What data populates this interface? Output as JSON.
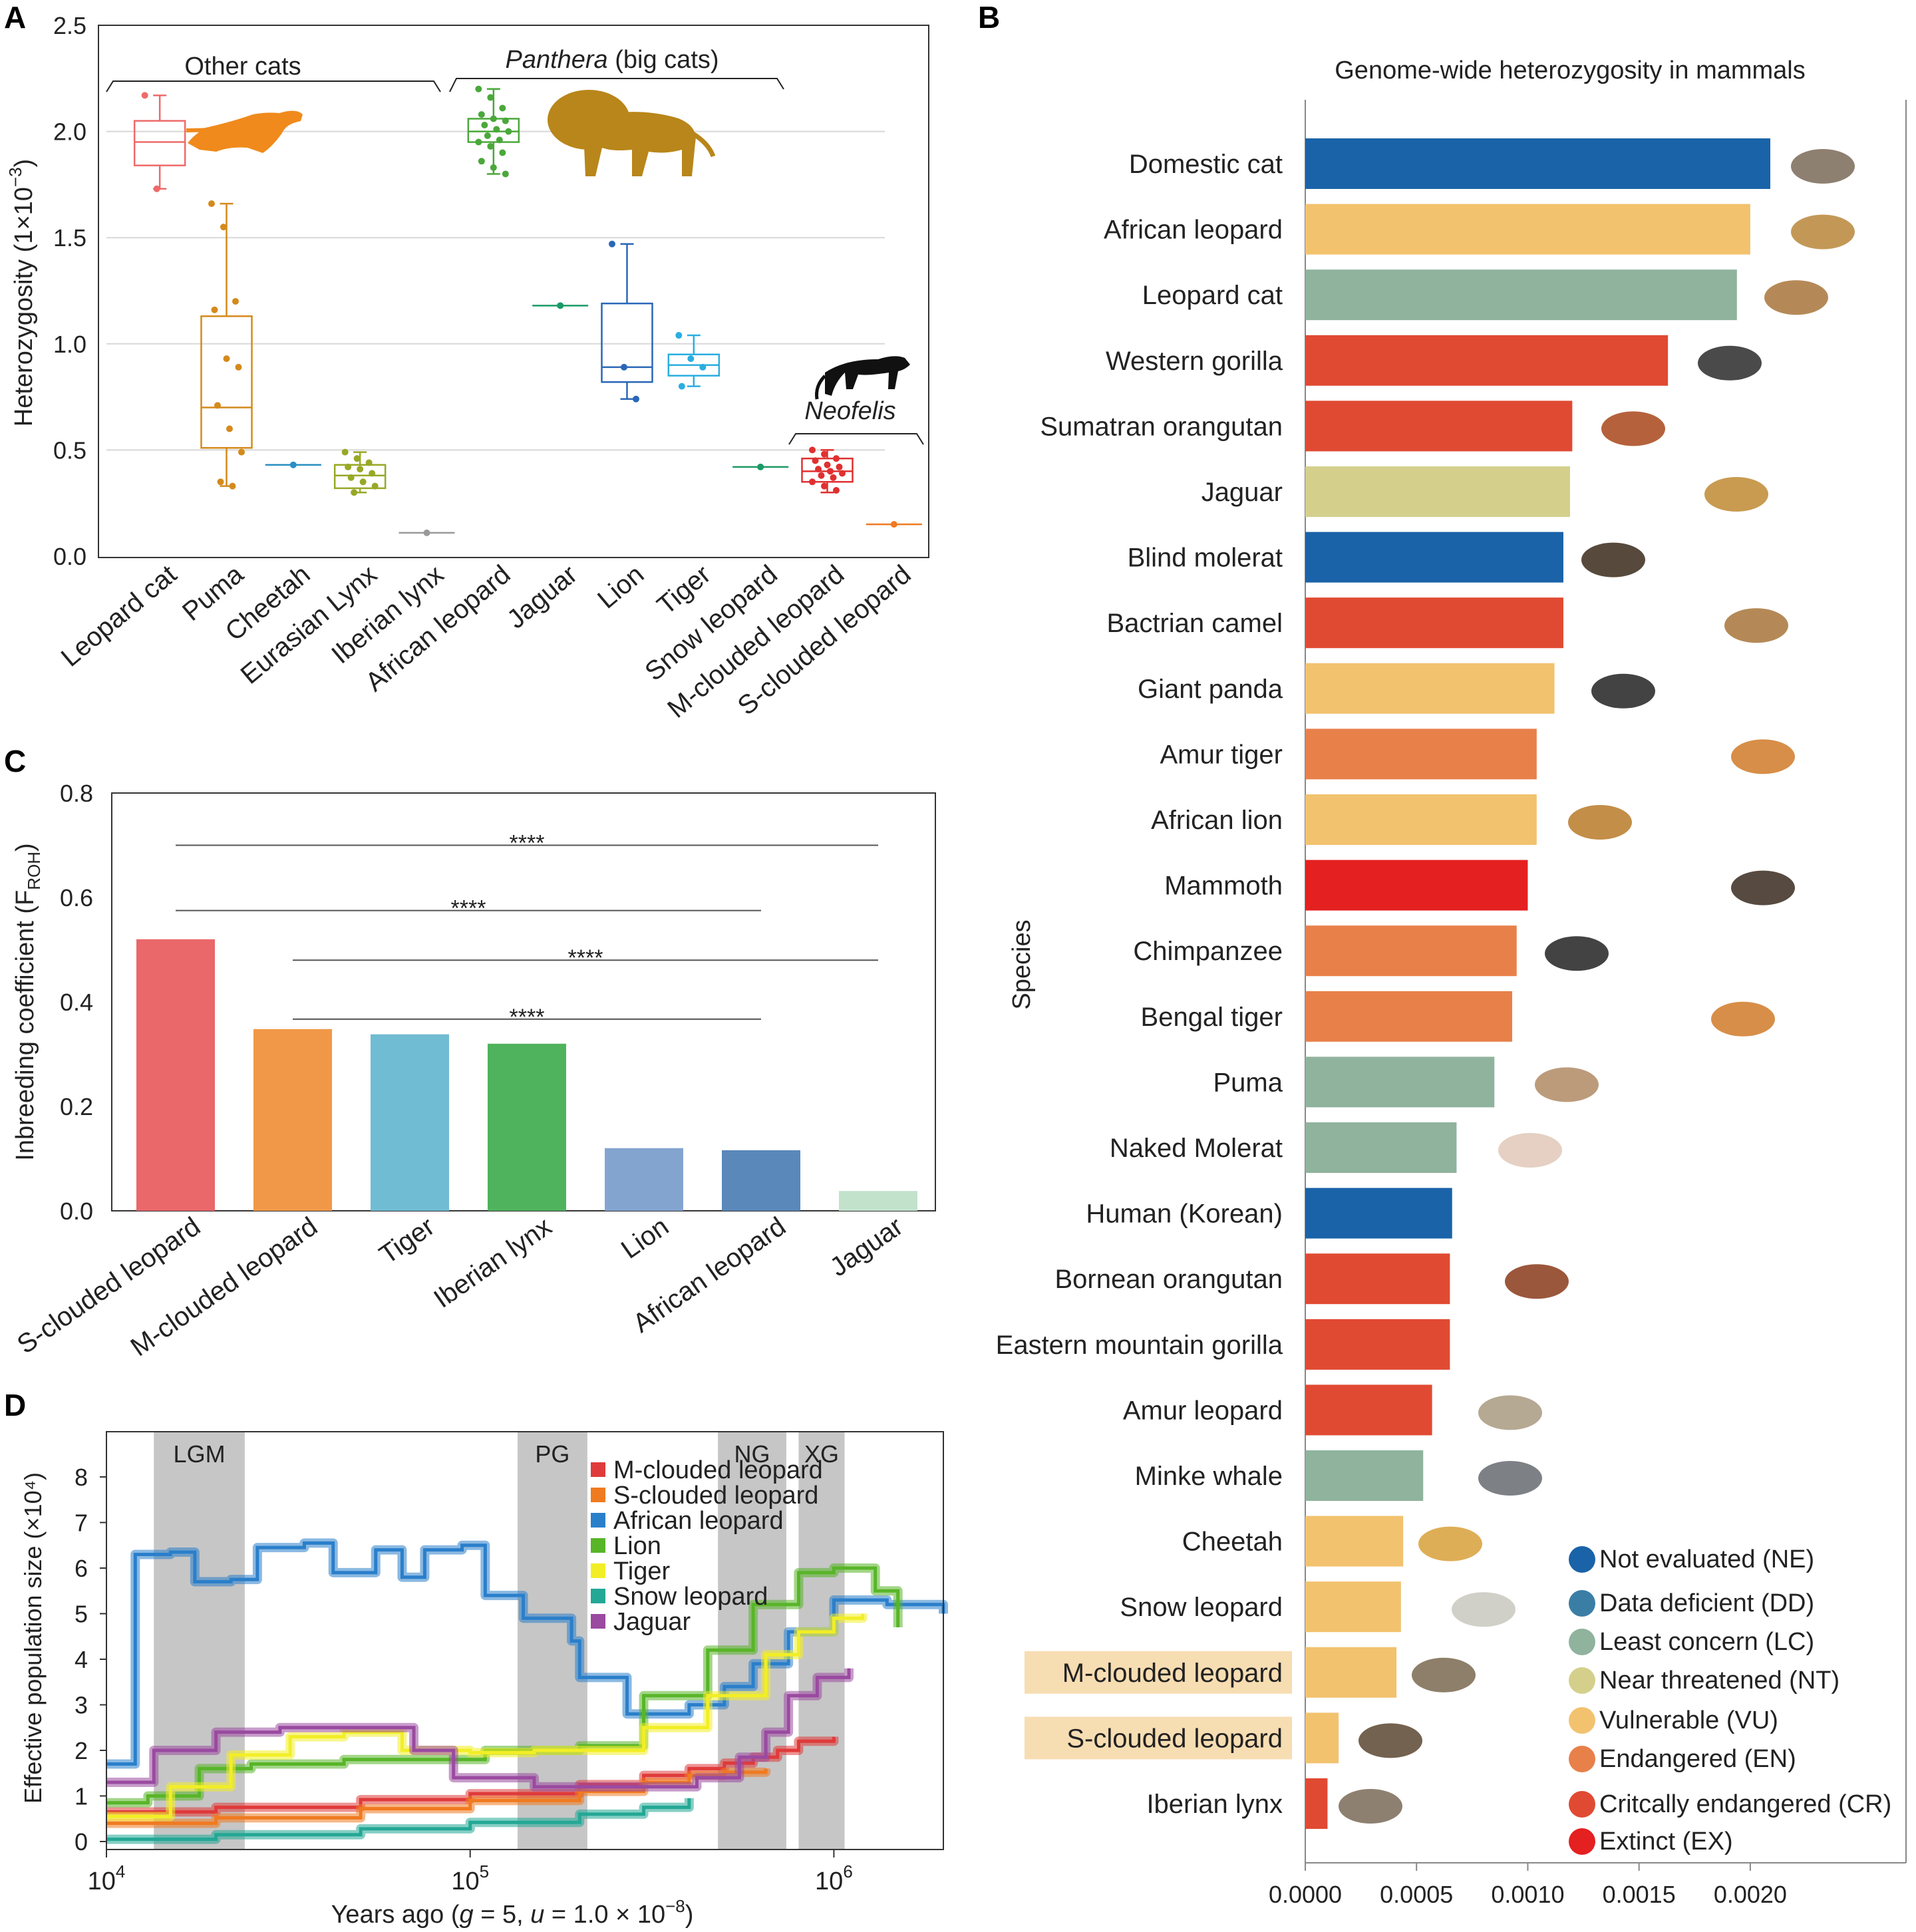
{
  "panels": {
    "A": "A",
    "B": "B",
    "C": "C",
    "D": "D"
  },
  "panelA": {
    "ylabel": "Heterozygosity (1×10⁻³)",
    "ylabel_parts": {
      "main": "Heterozygosity (1×10",
      "sup": "−3",
      "end": ")"
    },
    "yticks": [
      "0.0",
      "0.5",
      "1.0",
      "1.5",
      "2.0",
      "2.5"
    ],
    "group_other": "Other cats",
    "group_panthera_italic": "Panthera",
    "group_panthera_rest": " (big cats)",
    "group_neofelis": "Neofelis",
    "silhouettes": [
      "cheetah-silhouette",
      "lion-silhouette",
      "clouded-leopard-silhouette"
    ]
  },
  "panelB": {
    "title": "Genome-wide heterozygosity in mammals",
    "ylabel": "Species",
    "xticks": [
      "0.0000",
      "0.0005",
      "0.0010",
      "0.0015",
      "0.0020"
    ],
    "highlighted": [
      "M-clouded leopard",
      "S-clouded leopard"
    ],
    "legend": [
      {
        "label": "Not evaluated (NE)",
        "color": "#1a63a8"
      },
      {
        "label": "Data deficient (DD)",
        "color": "#3a7ea6"
      },
      {
        "label": "Least concern (LC)",
        "color": "#8fb39d"
      },
      {
        "label": "Near threatened (NT)",
        "color": "#d4d08c"
      },
      {
        "label": "Vulnerable (VU)",
        "color": "#f2c26e"
      },
      {
        "label": "Endangered (EN)",
        "color": "#e8804a"
      },
      {
        "label": "Critcally endangered (CR)",
        "color": "#e04a32"
      },
      {
        "label": "Extinct (EX)",
        "color": "#e52020"
      }
    ]
  },
  "panelC": {
    "ylabel": "Inbreeding coefficient (F",
    "ylabel_sub": "ROH",
    "ylabel_end": ")",
    "yticks": [
      "0.0",
      "0.2",
      "0.4",
      "0.6",
      "0.8"
    ],
    "sig_label": "****"
  },
  "panelD": {
    "ylabel": "Effective population size (×10⁴)",
    "xlabel_parts": [
      "Years ago (",
      "g",
      " = 5, ",
      "u",
      " = 1.0 × 10",
      "−8",
      ")"
    ],
    "yticks": [
      "0",
      "1",
      "2",
      "3",
      "4",
      "5",
      "6",
      "7",
      "8"
    ],
    "xticks": [
      {
        "base": "10",
        "exp": "4"
      },
      {
        "base": "10",
        "exp": "5"
      },
      {
        "base": "10",
        "exp": "6"
      }
    ],
    "bands": [
      {
        "label": "LGM",
        "from": 13500,
        "to": 24000
      },
      {
        "label": "PG",
        "from": 135000,
        "to": 210000
      },
      {
        "label": "NG",
        "from": 480000,
        "to": 740000
      },
      {
        "label": "XG",
        "from": 800000,
        "to": 1070000
      }
    ]
  },
  "chart_data": [
    {
      "type": "box",
      "panel": "A",
      "categories": [
        "Leopard cat",
        "Puma",
        "Cheetah",
        "Eurasian Lynx",
        "Iberian lynx",
        "African leopard",
        "Jaguar",
        "Lion",
        "Tiger",
        "Snow leopard",
        "M-clouded leopard",
        "S-clouded leopard"
      ],
      "colors": [
        "#ee6a6a",
        "#d48a1c",
        "#2a8fc2",
        "#98a826",
        "#9a9a9a",
        "#4aa83a",
        "#1a9a64",
        "#2a67b8",
        "#2aaee0",
        "#1a9a64",
        "#e03030",
        "#f07a20"
      ],
      "boxes": [
        {
          "min": 1.73,
          "q1": 1.84,
          "median": 1.95,
          "q3": 2.05,
          "max": 2.17
        },
        {
          "min": 0.33,
          "q1": 0.51,
          "median": 0.7,
          "q3": 1.13,
          "max": 1.66
        },
        {
          "median": 0.43
        },
        {
          "min": 0.3,
          "q1": 0.32,
          "median": 0.38,
          "q3": 0.43,
          "max": 0.49
        },
        {
          "median": 0.11
        },
        {
          "min": 1.8,
          "q1": 1.95,
          "median": 2.0,
          "q3": 2.06,
          "max": 2.2
        },
        {
          "median": 1.18
        },
        {
          "min": 0.74,
          "q1": 0.82,
          "median": 0.89,
          "q3": 1.19,
          "max": 1.47
        },
        {
          "min": 0.8,
          "q1": 0.85,
          "median": 0.9,
          "q3": 0.95,
          "max": 1.04
        },
        {
          "median": 0.42
        },
        {
          "min": 0.3,
          "q1": 0.35,
          "median": 0.4,
          "q3": 0.46,
          "max": 0.5
        },
        {
          "median": 0.15
        }
      ],
      "points": [
        [
          2.17,
          1.73
        ],
        [
          1.66,
          1.55,
          1.2,
          1.16,
          0.93,
          0.89,
          0.71,
          0.6,
          0.49,
          0.35,
          0.33
        ],
        [
          0.43
        ],
        [
          0.49,
          0.46,
          0.44,
          0.42,
          0.41,
          0.39,
          0.37,
          0.35,
          0.33,
          0.3
        ],
        [
          0.11
        ],
        [
          2.2,
          2.16,
          2.11,
          2.08,
          2.06,
          2.05,
          2.03,
          2.01,
          2.0,
          1.98,
          1.96,
          1.95,
          1.93,
          1.9,
          1.86,
          1.83,
          1.8
        ],
        [
          1.18
        ],
        [
          1.47,
          0.89,
          0.74
        ],
        [
          1.04,
          0.93,
          0.89,
          0.8
        ],
        [
          0.42
        ],
        [
          0.5,
          0.48,
          0.46,
          0.45,
          0.43,
          0.42,
          0.41,
          0.4,
          0.39,
          0.38,
          0.37,
          0.35,
          0.33,
          0.31
        ],
        [
          0.15
        ]
      ],
      "ylim": [
        0.0,
        2.5
      ]
    },
    {
      "type": "bar",
      "panel": "B",
      "orientation": "horizontal",
      "categories": [
        "Domestic cat",
        "African leopard",
        "Leopard cat",
        "Western gorilla",
        "Sumatran orangutan",
        "Jaguar",
        "Blind molerat",
        "Bactrian camel",
        "Giant panda",
        "Amur tiger",
        "African lion",
        "Mammoth",
        "Chimpanzee",
        "Bengal tiger",
        "Puma",
        "Naked Molerat",
        "Human (Korean)",
        "Bornean orangutan",
        "Eastern mountain gorilla",
        "Amur leopard",
        "Minke whale",
        "Cheetah",
        "Snow leopard",
        "M-clouded leopard",
        "S-clouded leopard",
        "Iberian lynx"
      ],
      "values": [
        0.00209,
        0.002,
        0.00194,
        0.00163,
        0.0012,
        0.00119,
        0.00116,
        0.00116,
        0.00112,
        0.00104,
        0.00104,
        0.001,
        0.00095,
        0.00093,
        0.00085,
        0.00068,
        0.00066,
        0.00065,
        0.00065,
        0.00057,
        0.00053,
        0.00044,
        0.00043,
        0.00041,
        0.00015,
        0.0001
      ],
      "status": [
        "NE",
        "VU",
        "LC",
        "CR",
        "CR",
        "NT",
        "NE",
        "CR",
        "VU",
        "EN",
        "VU",
        "EX",
        "EN",
        "EN",
        "LC",
        "LC",
        "NE",
        "CR",
        "CR",
        "CR",
        "LC",
        "VU",
        "VU",
        "VU",
        "VU",
        "CR"
      ],
      "xlim": [
        0,
        0.0027
      ],
      "title": "Genome-wide heterozygosity in mammals",
      "ylabel": "Species"
    },
    {
      "type": "bar",
      "panel": "C",
      "categories": [
        "S-clouded leopard",
        "M-clouded leopard",
        "Tiger",
        "Iberian lynx",
        "Lion",
        "African leopard",
        "Jaguar"
      ],
      "values": [
        0.52,
        0.348,
        0.338,
        0.32,
        0.12,
        0.116,
        0.038
      ],
      "colors": [
        "#ea676a",
        "#f19848",
        "#70bcd2",
        "#4fb35d",
        "#84a4d0",
        "#5a88ba",
        "#c2e2cc"
      ],
      "ylim": [
        0,
        0.8
      ],
      "comparisons": [
        {
          "from": "S-clouded leopard",
          "to": "Jaguar",
          "y": 0.7,
          "label": "****"
        },
        {
          "from": "S-clouded leopard",
          "to": "African leopard",
          "y": 0.575,
          "label": "****"
        },
        {
          "from": "M-clouded leopard",
          "to": "Jaguar",
          "y": 0.48,
          "label": "****"
        },
        {
          "from": "M-clouded leopard",
          "to": "African leopard",
          "y": 0.367,
          "label": "****"
        }
      ]
    },
    {
      "type": "line",
      "panel": "D",
      "xscale": "log",
      "xlim": [
        10000,
        2000000
      ],
      "ylim": [
        0,
        8.5
      ],
      "series": [
        {
          "name": "M-clouded leopard",
          "color": "#e03a3a",
          "points": [
            [
              10000,
              0.65
            ],
            [
              20000,
              0.75
            ],
            [
              50000,
              0.92
            ],
            [
              100000,
              1.05
            ],
            [
              200000,
              1.25
            ],
            [
              300000,
              1.45
            ],
            [
              400000,
              1.6
            ],
            [
              500000,
              1.72
            ],
            [
              600000,
              1.85
            ],
            [
              700000,
              2.0
            ],
            [
              800000,
              2.2
            ],
            [
              1000000,
              2.3
            ]
          ]
        },
        {
          "name": "S-clouded leopard",
          "color": "#f07a20",
          "points": [
            [
              10000,
              0.4
            ],
            [
              20000,
              0.52
            ],
            [
              50000,
              0.72
            ],
            [
              100000,
              0.9
            ],
            [
              200000,
              1.1
            ],
            [
              300000,
              1.3
            ],
            [
              400000,
              1.45
            ],
            [
              500000,
              1.52
            ],
            [
              650000,
              1.6
            ]
          ]
        },
        {
          "name": "African leopard",
          "color": "#2a7fcb",
          "points": [
            [
              10000,
              1.7
            ],
            [
              11800,
              1.7
            ],
            [
              12000,
              6.3
            ],
            [
              15000,
              6.35
            ],
            [
              17500,
              5.7
            ],
            [
              22000,
              5.75
            ],
            [
              26000,
              6.45
            ],
            [
              35000,
              6.55
            ],
            [
              42000,
              5.9
            ],
            [
              55000,
              6.4
            ],
            [
              65000,
              5.8
            ],
            [
              75000,
              6.4
            ],
            [
              95000,
              6.5
            ],
            [
              110000,
              5.4
            ],
            [
              140000,
              4.9
            ],
            [
              190000,
              4.4
            ],
            [
              200000,
              3.6
            ],
            [
              270000,
              2.8
            ],
            [
              400000,
              3.0
            ],
            [
              500000,
              3.4
            ],
            [
              600000,
              3.9
            ],
            [
              750000,
              4.6
            ],
            [
              1000000,
              5.3
            ],
            [
              1400000,
              5.2
            ],
            [
              2000000,
              5.0
            ]
          ]
        },
        {
          "name": "Lion",
          "color": "#58b528",
          "points": [
            [
              10000,
              0.85
            ],
            [
              13000,
              1.0
            ],
            [
              18000,
              1.6
            ],
            [
              25000,
              1.7
            ],
            [
              45000,
              1.8
            ],
            [
              80000,
              1.8
            ],
            [
              110000,
              2.0
            ],
            [
              200000,
              2.1
            ],
            [
              300000,
              3.2
            ],
            [
              450000,
              4.2
            ],
            [
              600000,
              5.2
            ],
            [
              800000,
              5.9
            ],
            [
              1000000,
              6.0
            ],
            [
              1300000,
              5.5
            ],
            [
              1500000,
              4.7
            ]
          ]
        },
        {
          "name": "Tiger",
          "color": "#f2ee26",
          "points": [
            [
              10000,
              0.55
            ],
            [
              15000,
              1.2
            ],
            [
              22000,
              1.9
            ],
            [
              32000,
              2.3
            ],
            [
              45000,
              2.4
            ],
            [
              65000,
              2.0
            ],
            [
              100000,
              1.95
            ],
            [
              150000,
              2.0
            ],
            [
              300000,
              2.5
            ],
            [
              450000,
              3.2
            ],
            [
              650000,
              4.1
            ],
            [
              800000,
              4.6
            ],
            [
              1000000,
              4.9
            ],
            [
              1200000,
              5.0
            ]
          ]
        },
        {
          "name": "Snow leopard",
          "color": "#23a895",
          "points": [
            [
              10000,
              0.05
            ],
            [
              20000,
              0.15
            ],
            [
              50000,
              0.28
            ],
            [
              100000,
              0.42
            ],
            [
              200000,
              0.6
            ],
            [
              300000,
              0.75
            ],
            [
              400000,
              0.95
            ]
          ]
        },
        {
          "name": "Jaguar",
          "color": "#9a4aa0",
          "points": [
            [
              10000,
              1.3
            ],
            [
              12500,
              1.3
            ],
            [
              13500,
              2.0
            ],
            [
              20000,
              2.4
            ],
            [
              30000,
              2.5
            ],
            [
              45000,
              2.5
            ],
            [
              70000,
              2.0
            ],
            [
              90000,
              1.4
            ],
            [
              150000,
              1.2
            ],
            [
              300000,
              1.2
            ],
            [
              420000,
              1.4
            ],
            [
              550000,
              1.85
            ],
            [
              650000,
              2.4
            ],
            [
              750000,
              3.2
            ],
            [
              900000,
              3.6
            ],
            [
              1100000,
              3.8
            ]
          ]
        }
      ]
    }
  ]
}
